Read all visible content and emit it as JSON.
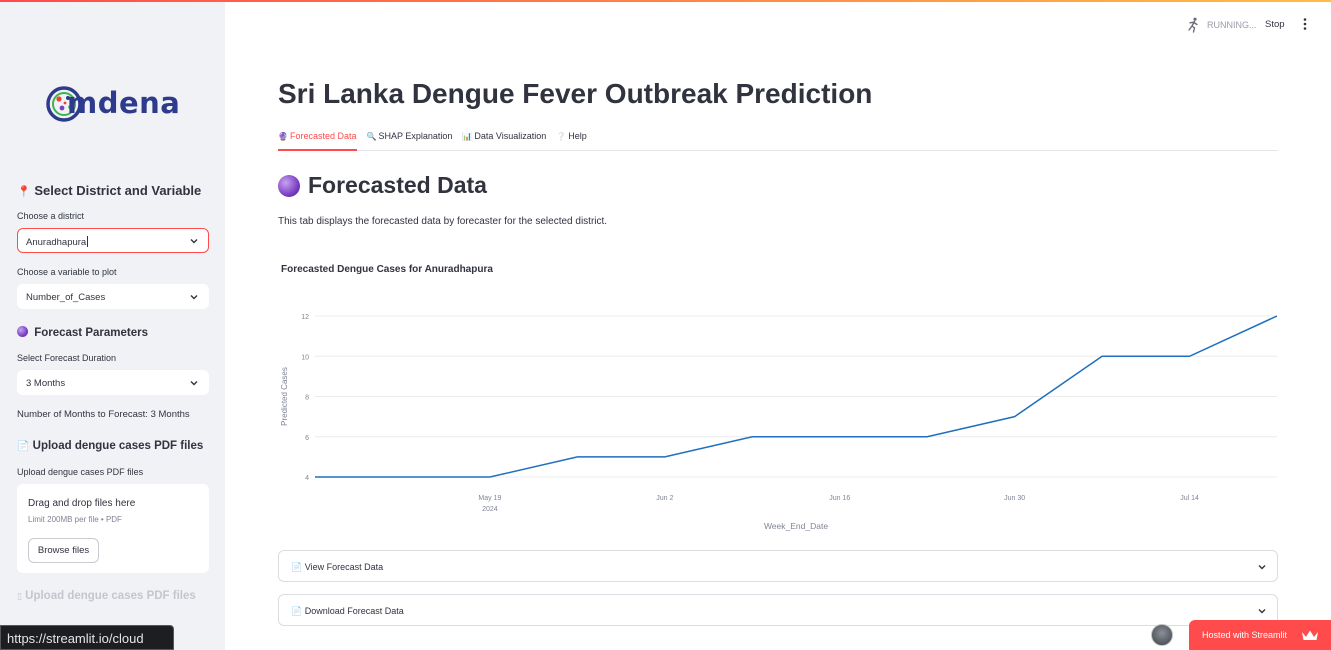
{
  "app": {
    "title": "Sri Lanka Dengue Fever Outbreak Prediction",
    "logo_text": "mdena",
    "status_running": "RUNNING...",
    "stop_label": "Stop",
    "tooltip_url": "https://streamlit.io/cloud",
    "hosted_label": "Hosted with Streamlit"
  },
  "sidebar": {
    "section1_icon": "📍",
    "section1_title": "Select District and Variable",
    "district_label": "Choose a district",
    "district_value": "Anuradhapura",
    "variable_label": "Choose a variable to plot",
    "variable_value": "Number_of_Cases",
    "section2_title": "Forecast Parameters",
    "duration_label": "Select Forecast Duration",
    "duration_value": "3 Months",
    "months_text": "Number of Months to Forecast: 3 Months",
    "section3_icon": "📄",
    "section3_title": "Upload dengue cases PDF files",
    "upload_label": "Upload dengue cases PDF files",
    "drop_text": "Drag and drop files here",
    "limit_text": "Limit 200MB per file • PDF",
    "browse_label": "Browse files",
    "faded_title": "Upload dengue cases PDF files"
  },
  "tabs": [
    {
      "icon": "🔮",
      "label": "Forecasted Data",
      "active": true
    },
    {
      "icon": "🔍",
      "label": "SHAP Explanation",
      "active": false
    },
    {
      "icon": "📊",
      "label": "Data Visualization",
      "active": false
    },
    {
      "icon": "❔",
      "label": "Help",
      "active": false
    }
  ],
  "main": {
    "heading": "Forecasted Data",
    "description": "This tab displays the forecasted data by forecaster for the selected district.",
    "expander1_icon": "📄",
    "expander1_label": "View Forecast Data",
    "expander2_icon": "📄",
    "expander2_label": "Download Forecast Data"
  },
  "colors": {
    "accent": "#ff4b4b",
    "line": "#1f6fbf",
    "sidebar_bg": "#f0f2f6"
  },
  "chart_data": {
    "type": "line",
    "title": "Forecasted Dengue Cases for Anuradhapura",
    "xlabel": "Week_End_Date",
    "ylabel": "Predicted Cases",
    "x": [
      "2024-05-05",
      "2024-05-12",
      "2024-05-19",
      "2024-05-26",
      "2024-06-02",
      "2024-06-09",
      "2024-06-16",
      "2024-06-23",
      "2024-06-30",
      "2024-07-07",
      "2024-07-14",
      "2024-07-21"
    ],
    "values": [
      4,
      4,
      4,
      5,
      5,
      6,
      6,
      6,
      7,
      10,
      10,
      12
    ],
    "ylim": [
      4,
      12
    ],
    "yticks": [
      4,
      6,
      8,
      10,
      12
    ],
    "xticks": [
      {
        "date": "2024-05-19",
        "label": "May 19",
        "sublabel": "2024"
      },
      {
        "date": "2024-06-02",
        "label": "Jun 2",
        "sublabel": ""
      },
      {
        "date": "2024-06-16",
        "label": "Jun 16",
        "sublabel": ""
      },
      {
        "date": "2024-06-30",
        "label": "Jun 30",
        "sublabel": ""
      },
      {
        "date": "2024-07-14",
        "label": "Jul 14",
        "sublabel": ""
      }
    ],
    "grid": true
  }
}
